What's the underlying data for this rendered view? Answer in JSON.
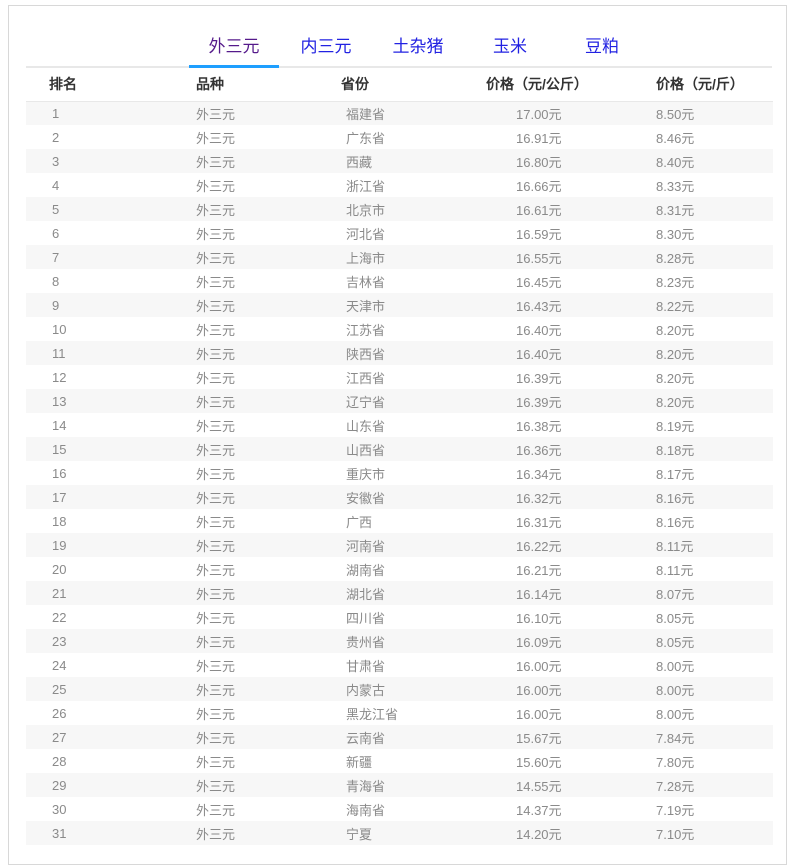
{
  "tabs": {
    "items": [
      {
        "label": "外三元",
        "active": true
      },
      {
        "label": "内三元",
        "active": false
      },
      {
        "label": "土杂猪",
        "active": false
      },
      {
        "label": "玉米",
        "active": false
      },
      {
        "label": "豆粕",
        "active": false
      }
    ]
  },
  "table": {
    "headers": [
      "排名",
      "品种",
      "省份",
      "价格（元/公斤）",
      "价格（元/斤）"
    ],
    "rows": [
      [
        "1",
        "外三元",
        "福建省",
        "17.00元",
        "8.50元"
      ],
      [
        "2",
        "外三元",
        "广东省",
        "16.91元",
        "8.46元"
      ],
      [
        "3",
        "外三元",
        "西藏",
        "16.80元",
        "8.40元"
      ],
      [
        "4",
        "外三元",
        "浙江省",
        "16.66元",
        "8.33元"
      ],
      [
        "5",
        "外三元",
        "北京市",
        "16.61元",
        "8.31元"
      ],
      [
        "6",
        "外三元",
        "河北省",
        "16.59元",
        "8.30元"
      ],
      [
        "7",
        "外三元",
        "上海市",
        "16.55元",
        "8.28元"
      ],
      [
        "8",
        "外三元",
        "吉林省",
        "16.45元",
        "8.23元"
      ],
      [
        "9",
        "外三元",
        "天津市",
        "16.43元",
        "8.22元"
      ],
      [
        "10",
        "外三元",
        "江苏省",
        "16.40元",
        "8.20元"
      ],
      [
        "11",
        "外三元",
        "陕西省",
        "16.40元",
        "8.20元"
      ],
      [
        "12",
        "外三元",
        "江西省",
        "16.39元",
        "8.20元"
      ],
      [
        "13",
        "外三元",
        "辽宁省",
        "16.39元",
        "8.20元"
      ],
      [
        "14",
        "外三元",
        "山东省",
        "16.38元",
        "8.19元"
      ],
      [
        "15",
        "外三元",
        "山西省",
        "16.36元",
        "8.18元"
      ],
      [
        "16",
        "外三元",
        "重庆市",
        "16.34元",
        "8.17元"
      ],
      [
        "17",
        "外三元",
        "安徽省",
        "16.32元",
        "8.16元"
      ],
      [
        "18",
        "外三元",
        "广西",
        "16.31元",
        "8.16元"
      ],
      [
        "19",
        "外三元",
        "河南省",
        "16.22元",
        "8.11元"
      ],
      [
        "20",
        "外三元",
        "湖南省",
        "16.21元",
        "8.11元"
      ],
      [
        "21",
        "外三元",
        "湖北省",
        "16.14元",
        "8.07元"
      ],
      [
        "22",
        "外三元",
        "四川省",
        "16.10元",
        "8.05元"
      ],
      [
        "23",
        "外三元",
        "贵州省",
        "16.09元",
        "8.05元"
      ],
      [
        "24",
        "外三元",
        "甘肃省",
        "16.00元",
        "8.00元"
      ],
      [
        "25",
        "外三元",
        "内蒙古",
        "16.00元",
        "8.00元"
      ],
      [
        "26",
        "外三元",
        "黑龙江省",
        "16.00元",
        "8.00元"
      ],
      [
        "27",
        "外三元",
        "云南省",
        "15.67元",
        "7.84元"
      ],
      [
        "28",
        "外三元",
        "新疆",
        "15.60元",
        "7.80元"
      ],
      [
        "29",
        "外三元",
        "青海省",
        "14.55元",
        "7.28元"
      ],
      [
        "30",
        "外三元",
        "海南省",
        "14.37元",
        "7.19元"
      ],
      [
        "31",
        "外三元",
        "宁夏",
        "14.20元",
        "7.10元"
      ]
    ]
  },
  "colors": {
    "tab_link": "#2222E2",
    "active_tab_text": "#551A8B",
    "active_underline": "#1E9FFF",
    "stripe": "#F7F7F7",
    "card_border": "#D8D8D8"
  }
}
